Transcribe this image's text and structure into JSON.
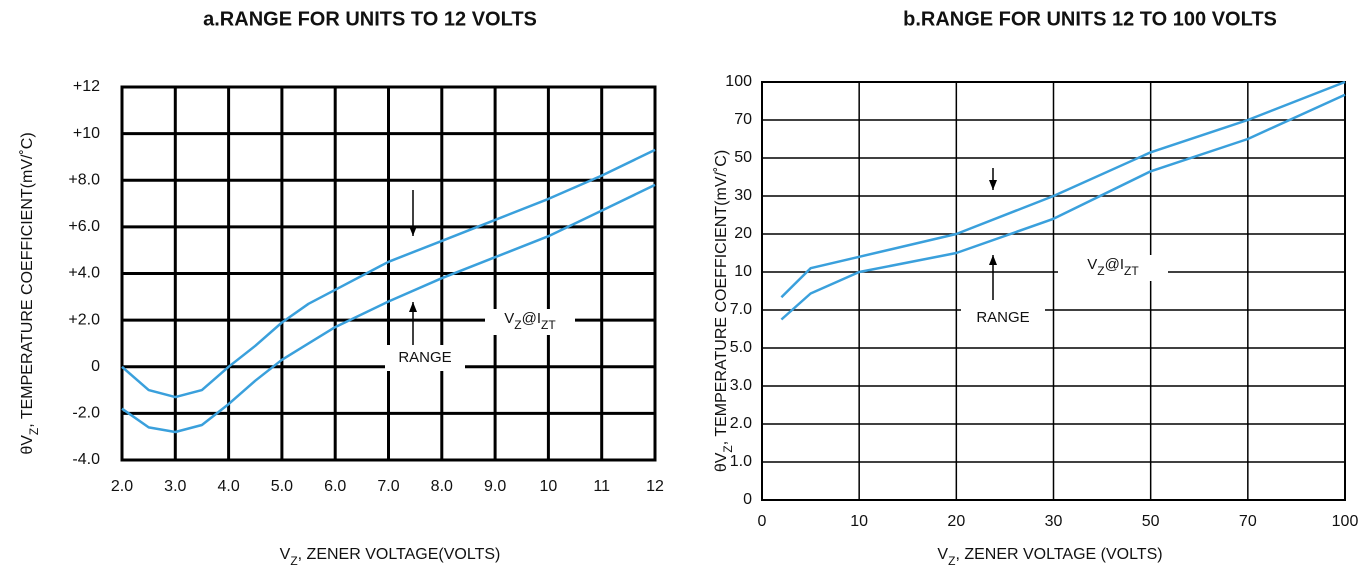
{
  "chart_data": [
    {
      "type": "line",
      "title": "a.RANGE FOR UNITS TO 12 VOLTS",
      "x_label_parts": [
        "V",
        "Z",
        ", ZENER VOLTAGE(VOLTS)"
      ],
      "y_label_parts": [
        "θV",
        "Z",
        ",   TEMPERATURE COEFFICIENT(mV/˚C)"
      ],
      "x": [
        2,
        2.5,
        3,
        3.5,
        4,
        4.5,
        5,
        5.5,
        6,
        7,
        8,
        9,
        10,
        11,
        12
      ],
      "series": [
        {
          "color": "#3aa0dc",
          "values": [
            0,
            -1.0,
            -1.3,
            -1.0,
            0,
            0.9,
            1.9,
            2.7,
            3.3,
            4.5,
            5.4,
            6.3,
            7.2,
            8.2,
            9.3
          ]
        },
        {
          "color": "#3aa0dc",
          "values": [
            -1.8,
            -2.6,
            -2.8,
            -2.5,
            -1.6,
            -0.6,
            0.3,
            1.0,
            1.7,
            2.8,
            3.8,
            4.7,
            5.6,
            6.7,
            7.8
          ]
        }
      ],
      "xlim": [
        2,
        12
      ],
      "xticks": [
        {
          "value": 2,
          "label": "2.0"
        },
        {
          "value": 3,
          "label": "3.0"
        },
        {
          "value": 4,
          "label": "4.0"
        },
        {
          "value": 5,
          "label": "5.0"
        },
        {
          "value": 6,
          "label": "6.0"
        },
        {
          "value": 7,
          "label": "7.0"
        },
        {
          "value": 8,
          "label": "8.0"
        },
        {
          "value": 9,
          "label": "9.0"
        },
        10,
        11,
        12
      ],
      "ylim": [
        -4,
        12
      ],
      "yticks": [
        {
          "value": -4,
          "label": "-4.0"
        },
        {
          "value": -2,
          "label": "-2.0"
        },
        0,
        {
          "value": 2,
          "label": "+2.0"
        },
        {
          "value": 4,
          "label": "+4.0"
        },
        {
          "value": 6,
          "label": "+6.0"
        },
        {
          "value": 8,
          "label": "+8.0"
        },
        {
          "value": 10,
          "label": "+10"
        },
        {
          "value": 12,
          "label": "+12"
        }
      ],
      "grid": true,
      "annotations": [
        {
          "text": "RANGE"
        },
        {
          "parts": [
            "V",
            "Z",
            "@I",
            "ZT"
          ]
        }
      ]
    },
    {
      "type": "line",
      "title": "b.RANGE FOR UNITS 12 TO 100 VOLTS",
      "x_label_parts": [
        "V",
        "Z",
        ", ZENER VOLTAGE (VOLTS)"
      ],
      "y_label_parts": [
        "θV",
        "Z",
        ",   TEMPERATURE COEFFICIENT(mV/˚C)"
      ],
      "x": [
        2,
        5,
        10,
        20,
        30,
        50,
        70,
        100
      ],
      "series": [
        {
          "color": "#3aa0dc",
          "values": [
            8,
            11,
            14,
            20,
            30,
            53,
            70,
            100
          ]
        },
        {
          "color": "#3aa0dc",
          "values": [
            6.5,
            8.3,
            10,
            15,
            24,
            43,
            60,
            90
          ]
        }
      ],
      "xscale": "tick-spaced",
      "yscale": "tick-spaced",
      "xlim": [
        0,
        100
      ],
      "xticks": [
        0,
        10,
        20,
        30,
        50,
        70,
        100
      ],
      "ylim": [
        0,
        100
      ],
      "yticks": [
        0,
        {
          "value": 1,
          "label": "1.0"
        },
        {
          "value": 2,
          "label": "2.0"
        },
        {
          "value": 3,
          "label": "3.0"
        },
        {
          "value": 5,
          "label": "5.0"
        },
        {
          "value": 7,
          "label": "7.0"
        },
        10,
        20,
        30,
        50,
        70,
        100
      ],
      "grid": true,
      "annotations": [
        {
          "text": "RANGE"
        },
        {
          "parts": [
            "V",
            "Z",
            "@I",
            "ZT"
          ]
        }
      ]
    }
  ]
}
